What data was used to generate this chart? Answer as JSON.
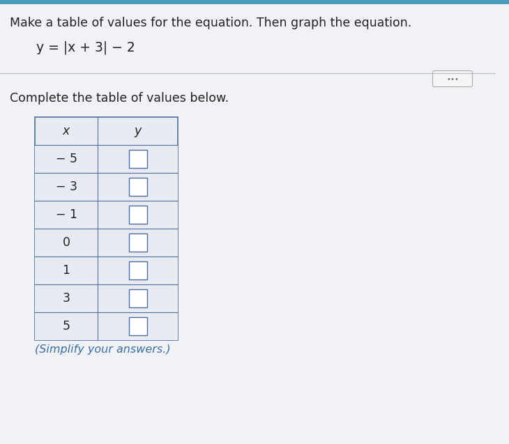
{
  "title_line1": "Make a table of values for the equation. Then graph the equation.",
  "equation": "y = |x + 3| − 2",
  "subtitle": "Complete the table of values below.",
  "note": "(Simplify your answers.)",
  "x_values": [
    "− 5",
    "− 3",
    "− 1",
    "0",
    "1",
    "3",
    "5"
  ],
  "col_headers": [
    "x",
    "y"
  ],
  "bg_color": "#f0f2f5",
  "table_outer_bg": "#e8ecf2",
  "cell_fill_x": "#e8ecf2",
  "cell_fill_y": "#e8ecf2",
  "cell_fill_y_inner": "#ffffff",
  "border_color": "#4a6fa0",
  "text_color": "#222222",
  "blue_text": "#3a6ea8",
  "dots_color": "#777777",
  "separator_color": "#b8bec8",
  "title_fontsize": 12.5,
  "eq_fontsize": 13.5,
  "subtitle_fontsize": 12.5,
  "note_fontsize": 11.5,
  "table_fontsize": 12.5,
  "header_fontsize": 12.5,
  "dots_fontsize": 10,
  "fig_width": 7.3,
  "fig_height": 6.37,
  "dpi": 100
}
